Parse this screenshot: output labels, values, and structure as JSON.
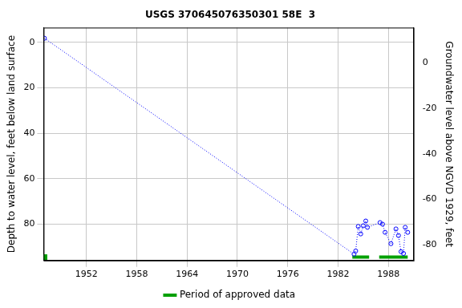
{
  "chart_data": {
    "type": "line",
    "title": "USGS 370645076350301 58E  3",
    "y_label": "Depth to water level, feet below land surface",
    "y2_label": "Groundwater level above NGVD 1929, feet",
    "xlim": [
      1946.9,
      1991
    ],
    "xticks": [
      1952,
      1958,
      1964,
      1970,
      1976,
      1982,
      1988
    ],
    "ylim": [
      96,
      -6.5
    ],
    "yticks": [
      0,
      20,
      40,
      60,
      80
    ],
    "y2lim": [
      -87,
      15.5
    ],
    "y2ticks": [
      0,
      -20,
      -40,
      -60,
      -80
    ],
    "grid": true,
    "legend": "bottom",
    "series": [
      {
        "name": "Depth to water level",
        "color": "#0000ff",
        "marker": "circle",
        "line_style": "dotted",
        "x": [
          1947.0,
          1983.9,
          1984.1,
          1984.4,
          1984.7,
          1985.0,
          1985.3,
          1985.5,
          1987.0,
          1987.3,
          1987.6,
          1988.3,
          1988.9,
          1989.2,
          1989.5,
          1989.8,
          1990.0,
          1990.3
        ],
        "values": [
          -1.8,
          93.2,
          91.8,
          81,
          84.3,
          80.7,
          78.6,
          81.4,
          79.3,
          80,
          83.6,
          88.6,
          82.1,
          85,
          92.1,
          92.9,
          81.4,
          83.6
        ]
      }
    ],
    "approved_periods": {
      "name": "Period of approved data",
      "color": "#00a000",
      "depth": 94.5,
      "ranges": [
        [
          1947.0,
          1947.0
        ],
        [
          1983.7,
          1985.7
        ],
        [
          1986.9,
          1990.3
        ]
      ]
    }
  }
}
